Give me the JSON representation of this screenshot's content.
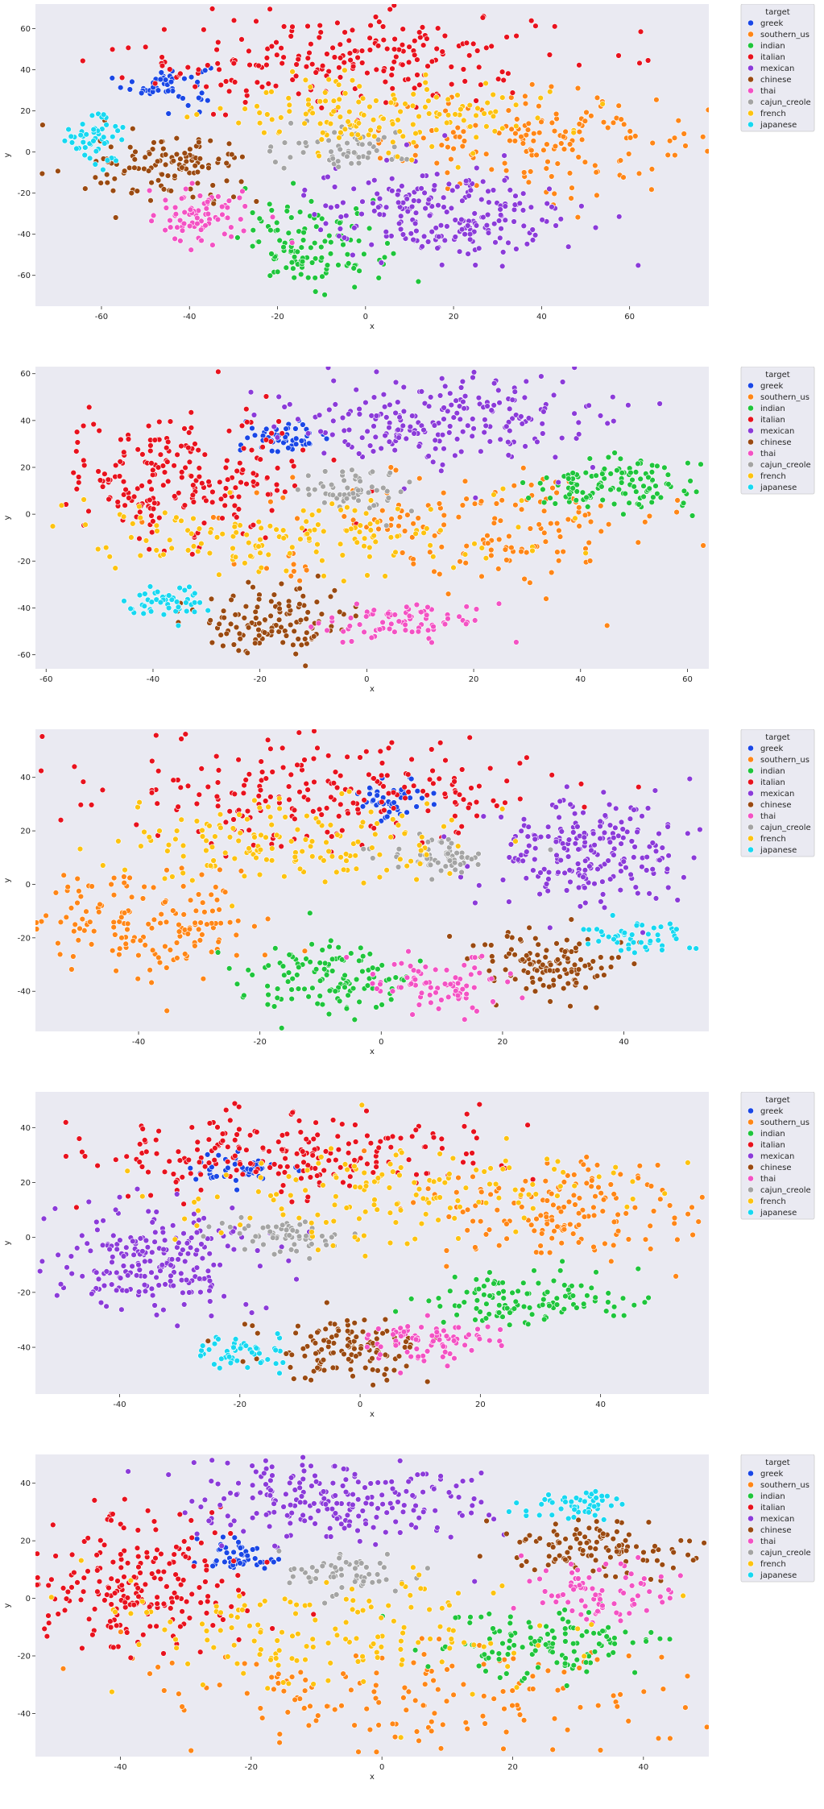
{
  "chart_data": [
    {
      "type": "scatter",
      "xlabel": "x",
      "ylabel": "y",
      "xlim": [
        -75,
        78
      ],
      "ylim": [
        -75,
        72
      ],
      "xticks": [
        -60,
        -40,
        -20,
        0,
        20,
        40,
        60
      ],
      "yticks": [
        -60,
        -40,
        -20,
        0,
        20,
        40,
        60
      ],
      "grid": false,
      "legend": {
        "placement": "outside-right-top",
        "title": "target"
      },
      "clusters": [
        {
          "name": "greek",
          "cx": -45,
          "cy": 33,
          "sx": 5,
          "sy": 5,
          "n": 50
        },
        {
          "name": "southern_us",
          "cx": 40,
          "cy": 5,
          "sx": 18,
          "sy": 12,
          "n": 160
        },
        {
          "name": "indian",
          "cx": -12,
          "cy": -45,
          "sx": 8,
          "sy": 10,
          "n": 120
        },
        {
          "name": "italian",
          "cx": -5,
          "cy": 45,
          "sx": 25,
          "sy": 12,
          "n": 220
        },
        {
          "name": "mexican",
          "cx": 18,
          "cy": -30,
          "sx": 15,
          "sy": 12,
          "n": 220
        },
        {
          "name": "chinese",
          "cx": -45,
          "cy": -8,
          "sx": 9,
          "sy": 8,
          "n": 120
        },
        {
          "name": "thai",
          "cx": -37,
          "cy": -32,
          "sx": 6,
          "sy": 7,
          "n": 80
        },
        {
          "name": "cajun_creole",
          "cx": -5,
          "cy": 2,
          "sx": 7,
          "sy": 5,
          "n": 60
        },
        {
          "name": "french",
          "cx": 5,
          "cy": 20,
          "sx": 20,
          "sy": 10,
          "n": 150
        },
        {
          "name": "japanese",
          "cx": -62,
          "cy": 5,
          "sx": 4,
          "sy": 6,
          "n": 50
        }
      ]
    },
    {
      "type": "scatter",
      "xlabel": "x",
      "ylabel": "y",
      "xlim": [
        -62,
        64
      ],
      "ylim": [
        -66,
        63
      ],
      "xticks": [
        -60,
        -40,
        -20,
        0,
        20,
        40,
        60
      ],
      "yticks": [
        -60,
        -40,
        -20,
        0,
        20,
        40,
        60
      ],
      "grid": false,
      "legend": {
        "placement": "outside-right-top",
        "title": "target"
      },
      "clusters": [
        {
          "name": "greek",
          "cx": -15,
          "cy": 33,
          "sx": 4,
          "sy": 3,
          "n": 50
        },
        {
          "name": "southern_us",
          "cx": 20,
          "cy": -5,
          "sx": 20,
          "sy": 12,
          "n": 160
        },
        {
          "name": "indian",
          "cx": 45,
          "cy": 12,
          "sx": 8,
          "sy": 6,
          "n": 120
        },
        {
          "name": "italian",
          "cx": -35,
          "cy": 15,
          "sx": 12,
          "sy": 14,
          "n": 220
        },
        {
          "name": "mexican",
          "cx": 15,
          "cy": 40,
          "sx": 15,
          "sy": 9,
          "n": 220
        },
        {
          "name": "chinese",
          "cx": -18,
          "cy": -45,
          "sx": 7,
          "sy": 7,
          "n": 120
        },
        {
          "name": "thai",
          "cx": 8,
          "cy": -45,
          "sx": 8,
          "sy": 4,
          "n": 80
        },
        {
          "name": "cajun_creole",
          "cx": -2,
          "cy": 10,
          "sx": 5,
          "sy": 5,
          "n": 60
        },
        {
          "name": "french",
          "cx": -15,
          "cy": -10,
          "sx": 20,
          "sy": 8,
          "n": 150
        },
        {
          "name": "japanese",
          "cx": -37,
          "cy": -38,
          "sx": 4,
          "sy": 4,
          "n": 50
        }
      ]
    },
    {
      "type": "scatter",
      "xlabel": "x",
      "ylabel": "y",
      "xlim": [
        -57,
        54
      ],
      "ylim": [
        -55,
        58
      ],
      "xticks": [
        -40,
        -20,
        0,
        20,
        40
      ],
      "yticks": [
        -40,
        -20,
        0,
        20,
        40
      ],
      "grid": false,
      "legend": {
        "placement": "outside-right-top",
        "title": "target"
      },
      "clusters": [
        {
          "name": "greek",
          "cx": 2,
          "cy": 32,
          "sx": 3,
          "sy": 4,
          "n": 50
        },
        {
          "name": "southern_us",
          "cx": -38,
          "cy": -15,
          "sx": 10,
          "sy": 10,
          "n": 160
        },
        {
          "name": "indian",
          "cx": -8,
          "cy": -35,
          "sx": 7,
          "sy": 7,
          "n": 120
        },
        {
          "name": "italian",
          "cx": -10,
          "cy": 35,
          "sx": 18,
          "sy": 10,
          "n": 220
        },
        {
          "name": "mexican",
          "cx": 33,
          "cy": 12,
          "sx": 8,
          "sy": 10,
          "n": 220
        },
        {
          "name": "chinese",
          "cx": 28,
          "cy": -30,
          "sx": 6,
          "sy": 6,
          "n": 120
        },
        {
          "name": "thai",
          "cx": 10,
          "cy": -38,
          "sx": 6,
          "sy": 5,
          "n": 80
        },
        {
          "name": "cajun_creole",
          "cx": 8,
          "cy": 10,
          "sx": 6,
          "sy": 4,
          "n": 60
        },
        {
          "name": "french",
          "cx": -15,
          "cy": 15,
          "sx": 15,
          "sy": 8,
          "n": 150
        },
        {
          "name": "japanese",
          "cx": 43,
          "cy": -20,
          "sx": 4,
          "sy": 4,
          "n": 50
        }
      ]
    },
    {
      "type": "scatter",
      "xlabel": "x",
      "ylabel": "y",
      "xlim": [
        -54,
        58
      ],
      "ylim": [
        -57,
        53
      ],
      "xticks": [
        -40,
        -20,
        0,
        20,
        40
      ],
      "yticks": [
        -40,
        -20,
        0,
        20,
        40
      ],
      "grid": false,
      "legend": {
        "placement": "outside-right-top",
        "title": "target"
      },
      "clusters": [
        {
          "name": "greek",
          "cx": -20,
          "cy": 25,
          "sx": 4,
          "sy": 3,
          "n": 50
        },
        {
          "name": "southern_us",
          "cx": 35,
          "cy": 10,
          "sx": 12,
          "sy": 10,
          "n": 160
        },
        {
          "name": "indian",
          "cx": 28,
          "cy": -22,
          "sx": 10,
          "sy": 5,
          "n": 120
        },
        {
          "name": "italian",
          "cx": -15,
          "cy": 30,
          "sx": 17,
          "sy": 8,
          "n": 220
        },
        {
          "name": "mexican",
          "cx": -35,
          "cy": -8,
          "sx": 10,
          "sy": 9,
          "n": 220
        },
        {
          "name": "chinese",
          "cx": -3,
          "cy": -40,
          "sx": 7,
          "sy": 6,
          "n": 120
        },
        {
          "name": "thai",
          "cx": 12,
          "cy": -37,
          "sx": 6,
          "sy": 4,
          "n": 80
        },
        {
          "name": "cajun_creole",
          "cx": -12,
          "cy": 0,
          "sx": 5,
          "sy": 4,
          "n": 60
        },
        {
          "name": "french",
          "cx": 5,
          "cy": 15,
          "sx": 20,
          "sy": 9,
          "n": 150
        },
        {
          "name": "japanese",
          "cx": -20,
          "cy": -42,
          "sx": 4,
          "sy": 3,
          "n": 50
        }
      ]
    },
    {
      "type": "scatter",
      "xlabel": "x",
      "ylabel": "y",
      "xlim": [
        -53,
        50
      ],
      "ylim": [
        -55,
        50
      ],
      "xticks": [
        -40,
        -20,
        0,
        20,
        40
      ],
      "yticks": [
        -40,
        -20,
        0,
        20,
        40
      ],
      "grid": false,
      "legend": {
        "placement": "outside-right-top",
        "title": "target"
      },
      "clusters": [
        {
          "name": "greek",
          "cx": -22,
          "cy": 15,
          "sx": 3,
          "sy": 3,
          "n": 50
        },
        {
          "name": "southern_us",
          "cx": 5,
          "cy": -35,
          "sx": 20,
          "sy": 10,
          "n": 160
        },
        {
          "name": "indian",
          "cx": 25,
          "cy": -15,
          "sx": 8,
          "sy": 6,
          "n": 120
        },
        {
          "name": "italian",
          "cx": -38,
          "cy": 5,
          "sx": 9,
          "sy": 12,
          "n": 220
        },
        {
          "name": "mexican",
          "cx": -8,
          "cy": 35,
          "sx": 12,
          "sy": 7,
          "n": 220
        },
        {
          "name": "chinese",
          "cx": 33,
          "cy": 17,
          "sx": 8,
          "sy": 5,
          "n": 120
        },
        {
          "name": "thai",
          "cx": 33,
          "cy": 3,
          "sx": 6,
          "sy": 5,
          "n": 80
        },
        {
          "name": "cajun_creole",
          "cx": -5,
          "cy": 8,
          "sx": 5,
          "sy": 4,
          "n": 60
        },
        {
          "name": "french",
          "cx": -8,
          "cy": -12,
          "sx": 18,
          "sy": 10,
          "n": 150
        },
        {
          "name": "japanese",
          "cx": 30,
          "cy": 32,
          "sx": 4,
          "sy": 3,
          "n": 50
        }
      ]
    }
  ],
  "colors": {
    "greek": "#1a47e6",
    "southern_us": "#ff8617",
    "indian": "#1fc53c",
    "italian": "#e8121e",
    "mexican": "#8b3bd9",
    "chinese": "#9a4a12",
    "thai": "#f352c4",
    "cajun_creole": "#a4a4a4",
    "french": "#fdc310",
    "japanese": "#17d8f1"
  },
  "legend_items": [
    "greek",
    "southern_us",
    "indian",
    "italian",
    "mexican",
    "chinese",
    "thai",
    "cajun_creole",
    "french",
    "japanese"
  ]
}
